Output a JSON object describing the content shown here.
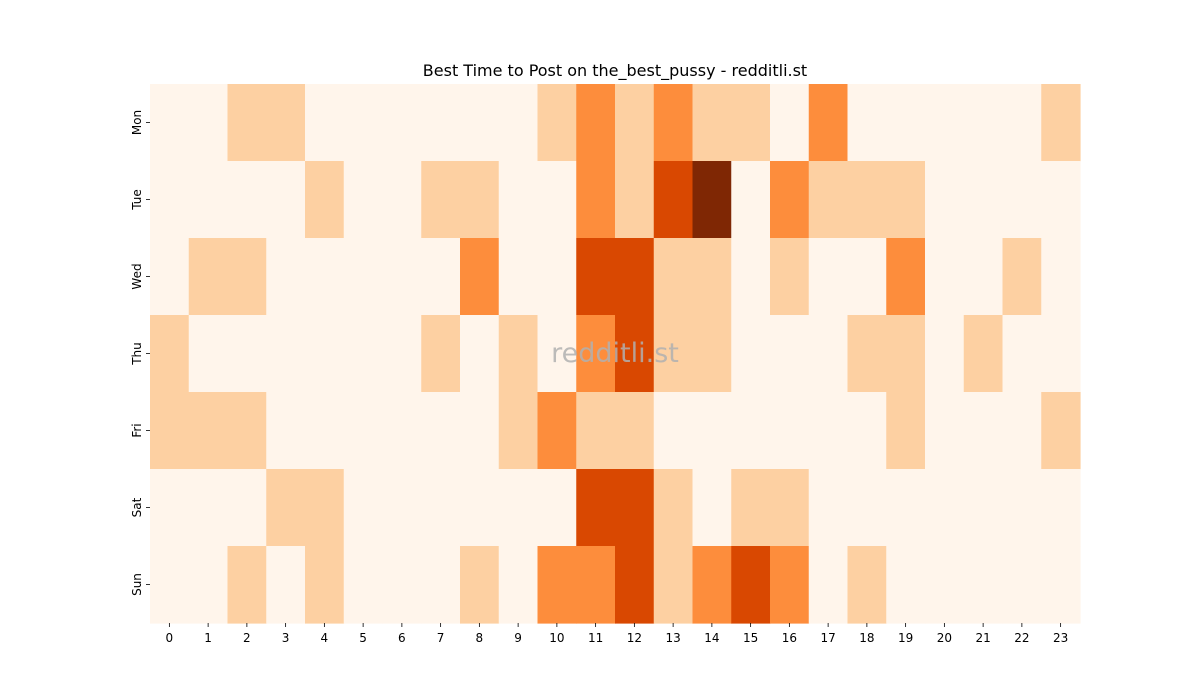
{
  "chart_data": {
    "type": "heatmap",
    "title": "Best Time to Post on the_best_pussy - redditli.st",
    "watermark": "redditli.st",
    "xlabel": "",
    "ylabel": "",
    "x_categories": [
      "0",
      "1",
      "2",
      "3",
      "4",
      "5",
      "6",
      "7",
      "8",
      "9",
      "10",
      "11",
      "12",
      "13",
      "14",
      "15",
      "16",
      "17",
      "18",
      "19",
      "20",
      "21",
      "22",
      "23"
    ],
    "y_categories": [
      "Mon",
      "Tue",
      "Wed",
      "Thu",
      "Fri",
      "Sat",
      "Sun"
    ],
    "colormap": "Oranges",
    "value_range": [
      0,
      4
    ],
    "colors": [
      "#fff5eb",
      "#fdd0a2",
      "#fd8d3c",
      "#d94801",
      "#7f2704"
    ],
    "values": [
      [
        0,
        0,
        1,
        1,
        0,
        0,
        0,
        0,
        0,
        0,
        1,
        2,
        1,
        2,
        1,
        1,
        0,
        2,
        0,
        0,
        0,
        0,
        0,
        1
      ],
      [
        0,
        0,
        0,
        0,
        1,
        0,
        0,
        1,
        1,
        0,
        0,
        2,
        1,
        3,
        4,
        0,
        2,
        1,
        1,
        1,
        0,
        0,
        0,
        0
      ],
      [
        0,
        1,
        1,
        0,
        0,
        0,
        0,
        0,
        2,
        0,
        0,
        3,
        3,
        1,
        1,
        0,
        1,
        0,
        0,
        2,
        0,
        0,
        1,
        0
      ],
      [
        1,
        0,
        0,
        0,
        0,
        0,
        0,
        1,
        0,
        1,
        0,
        2,
        3,
        1,
        1,
        0,
        0,
        0,
        1,
        1,
        0,
        1,
        0,
        0
      ],
      [
        1,
        1,
        1,
        0,
        0,
        0,
        0,
        0,
        0,
        1,
        2,
        1,
        1,
        0,
        0,
        0,
        0,
        0,
        0,
        1,
        0,
        0,
        0,
        1
      ],
      [
        0,
        0,
        0,
        1,
        1,
        0,
        0,
        0,
        0,
        0,
        0,
        3,
        3,
        1,
        0,
        1,
        1,
        0,
        0,
        0,
        0,
        0,
        0,
        0
      ],
      [
        0,
        0,
        1,
        0,
        1,
        0,
        0,
        0,
        1,
        0,
        2,
        2,
        3,
        1,
        2,
        3,
        2,
        0,
        1,
        0,
        0,
        0,
        0,
        0
      ]
    ]
  }
}
